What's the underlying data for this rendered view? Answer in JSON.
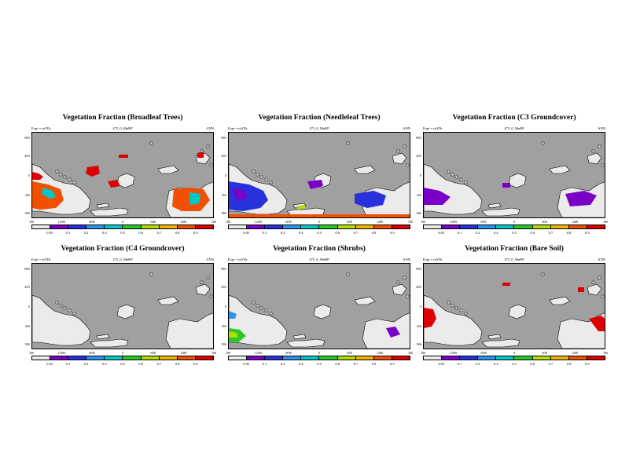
{
  "run_label": "475_0_MnRP",
  "experiment_label": "Expt = tnYDr",
  "period_label": "ANN",
  "lat_ticks": [
    "90N",
    "45N",
    "0",
    "45S",
    "90S"
  ],
  "lon_ticks": [
    "180",
    "120W",
    "60W",
    "0",
    "60E",
    "120E",
    "180"
  ],
  "colorbar_labels": [
    "0.05",
    "0.1",
    "0.2",
    "0.4",
    "0.5",
    "0.6",
    "0.7",
    "0.8",
    "0.9"
  ],
  "colorbar_colors": [
    "#ebebeb",
    "#7a00c8",
    "#2832dc",
    "#2896f0",
    "#00c8c8",
    "#28c828",
    "#b4dc00",
    "#f0b400",
    "#f05000",
    "#dc0000"
  ],
  "colors": {
    "ocean": "#a0a0a0",
    "land_zero": "#ebebeb",
    "land_edge": "#000000"
  },
  "panels": [
    {
      "title": "Vegetation Fraction (Broadleaf Trees)"
    },
    {
      "title": "Vegetation Fraction (Needleleaf Trees)"
    },
    {
      "title": "Vegetation Fraction (C3 Groundcover)"
    },
    {
      "title": "Vegetation Fraction (C4 Groundcover)"
    },
    {
      "title": "Vegetation Fraction (Shrubs)"
    },
    {
      "title": "Vegetation Fraction (Bare Soil)"
    }
  ]
}
